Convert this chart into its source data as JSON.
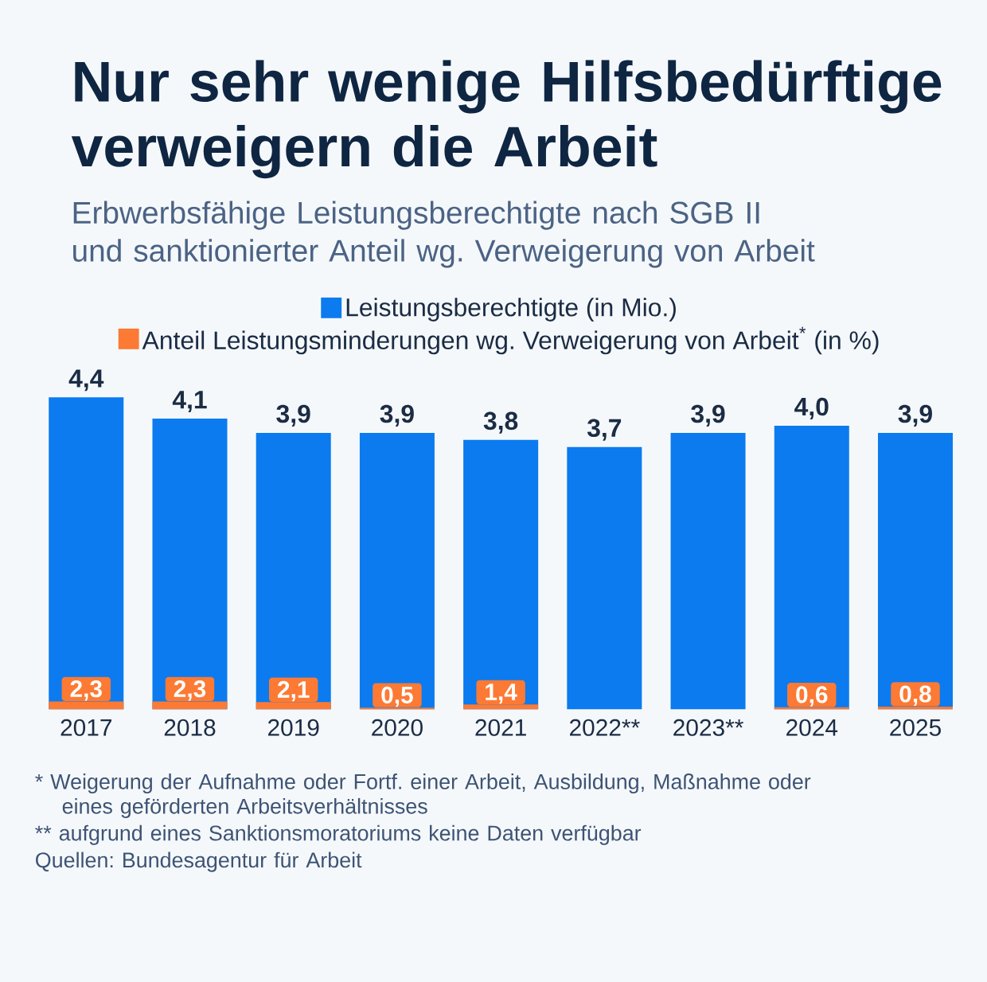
{
  "chart_data": {
    "type": "bar",
    "title": "Nur sehr wenige Hilfsbedürftige verweigern die Arbeit",
    "subtitle": "Erbwerbsfähige Leistungsberechtigte nach SGB II und sanktionierter Anteil wg. Verweigerung von Arbeit",
    "categories": [
      "2017",
      "2018",
      "2019",
      "2020",
      "2021",
      "2022**",
      "2023**",
      "2024",
      "2025"
    ],
    "series": [
      {
        "name": "Leistungsberechtigte (in Mio.)",
        "color": "#0b7bef",
        "values": [
          4.4,
          4.1,
          3.9,
          3.9,
          3.8,
          3.7,
          3.9,
          4.0,
          3.9
        ],
        "value_labels": [
          "4,4",
          "4,1",
          "3,9",
          "3,9",
          "3,8",
          "3,7",
          "3,9",
          "4,0",
          "3,9"
        ]
      },
      {
        "name": "Anteil Leistungsminderungen wg. Verweigerung von Arbeit$^{*}$ (in %)",
        "color": "#fc7a34",
        "axis": "y2",
        "values": [
          2.3,
          2.3,
          2.1,
          0.5,
          1.4,
          null,
          null,
          0.6,
          0.8
        ],
        "value_labels": [
          "2,3",
          "2,3",
          "2,1",
          "0,5",
          "1,4",
          null,
          null,
          "0,6",
          "0,8"
        ]
      }
    ],
    "legend": "top",
    "tick_labels": "x",
    "annotations": [
      "* Weigerung der Aufnahme oder Fortf. einer Arbeit, Ausbildung, Maßnahme oder eines geförderten Arbeitsverhältnisses",
      "** aufgrund eines Sanktionsmoratoriums keine Daten verfügbar",
      "Quellen: Bundesagentur für Arbeit"
    ]
  }
}
